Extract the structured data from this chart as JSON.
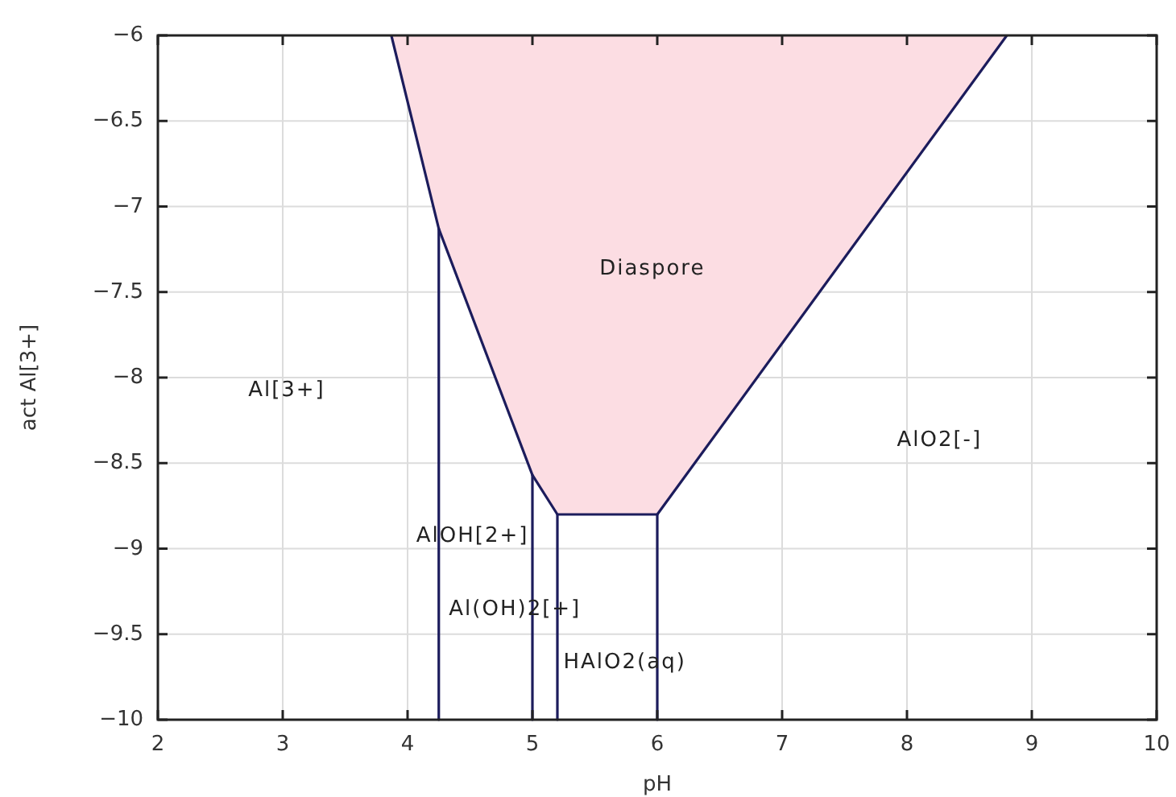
{
  "chart_data": {
    "type": "line",
    "xlabel": "pH",
    "ylabel": "act Al[3+]",
    "xlim": [
      2,
      10
    ],
    "ylim": [
      -10,
      -6
    ],
    "xticks": [
      2,
      3,
      4,
      5,
      6,
      7,
      8,
      9,
      10
    ],
    "yticks": [
      -10,
      -9.5,
      -9,
      -8.5,
      -8,
      -7.5,
      -7,
      -6.5,
      -6
    ],
    "grid": true,
    "series": [
      {
        "type": "area",
        "color": "#fcdde3",
        "x": [
          3.87,
          4.25,
          5,
          5.2,
          6,
          8.8
        ],
        "values": [
          -6,
          -7.13,
          -8.57,
          -8.8,
          -8.8,
          -6
        ]
      },
      {
        "color": "#1c1c5c",
        "x": [
          4.25,
          4.25
        ],
        "values": [
          -10,
          -7.13
        ]
      },
      {
        "color": "#1c1c5c",
        "x": [
          5,
          5
        ],
        "values": [
          -10,
          -8.57
        ]
      },
      {
        "color": "#1c1c5c",
        "x": [
          5.2,
          5.2
        ],
        "values": [
          -10,
          -8.8
        ]
      },
      {
        "color": "#1c1c5c",
        "x": [
          6,
          6
        ],
        "values": [
          -10,
          -8.8
        ]
      }
    ],
    "annotations": [
      "Diaspore",
      "Al[3+]",
      "AlO2[-]",
      "AlOH[2+]",
      "Al(OH)2[+]",
      "HAlO2(aq)"
    ]
  }
}
